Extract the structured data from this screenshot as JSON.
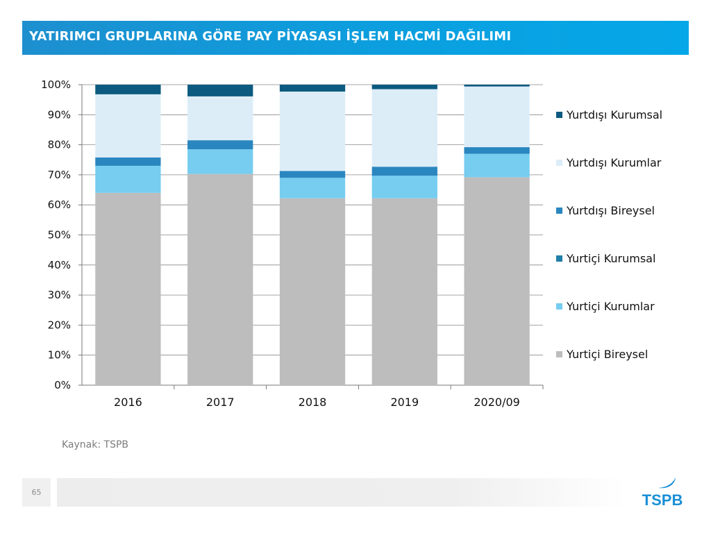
{
  "header": {
    "title": "YATIRIMCI GRUPLARINA GÖRE PAY PİYASASI İŞLEM HACMİ DAĞILIMI"
  },
  "footer": {
    "source": "Kaynak: TSPB",
    "page_number": "65",
    "logo_text": "TSPB"
  },
  "colors": {
    "title_bar": "#0aa0e0",
    "logo": "#1a8fd6"
  },
  "chart_data": {
    "type": "bar",
    "stacked": true,
    "categories": [
      "2016",
      "2017",
      "2018",
      "2019",
      "2020/09"
    ],
    "ylim": [
      0,
      100
    ],
    "yticks": [
      "0%",
      "10%",
      "20%",
      "30%",
      "40%",
      "50%",
      "60%",
      "70%",
      "80%",
      "90%",
      "100%"
    ],
    "grid": true,
    "legend_position": "right",
    "series": [
      {
        "name": "Yurtiçi Bireysel",
        "color": "#bdbdbd",
        "values": [
          64.0,
          70.3,
          62.2,
          62.2,
          69.2
        ]
      },
      {
        "name": "Yurtiçi Kurumlar",
        "color": "#76cdf0",
        "values": [
          9.0,
          8.2,
          6.8,
          7.5,
          7.8
        ]
      },
      {
        "name": "Yurtiçi Kurumsal",
        "color": "#1f7fa8",
        "values": [
          0.0,
          0.0,
          0.0,
          0.0,
          0.0
        ]
      },
      {
        "name": "Yurtdışı Bireysel",
        "color": "#2a86bf",
        "values": [
          2.8,
          3.0,
          2.3,
          3.0,
          2.2
        ]
      },
      {
        "name": "Yurtdışı Kurumlar",
        "color": "#dcedf8",
        "values": [
          21.0,
          14.6,
          26.4,
          25.8,
          20.2
        ]
      },
      {
        "name": "Yurtdışı Kurumsal",
        "color": "#0d5a80",
        "values": [
          3.2,
          3.9,
          2.3,
          1.5,
          0.6
        ]
      }
    ],
    "legend_order": [
      "Yurtdışı Kurumsal",
      "Yurtdışı Kurumlar",
      "Yurtdışı Bireysel",
      "Yurtiçi Kurumsal",
      "Yurtiçi Kurumlar",
      "Yurtiçi Bireysel"
    ]
  }
}
